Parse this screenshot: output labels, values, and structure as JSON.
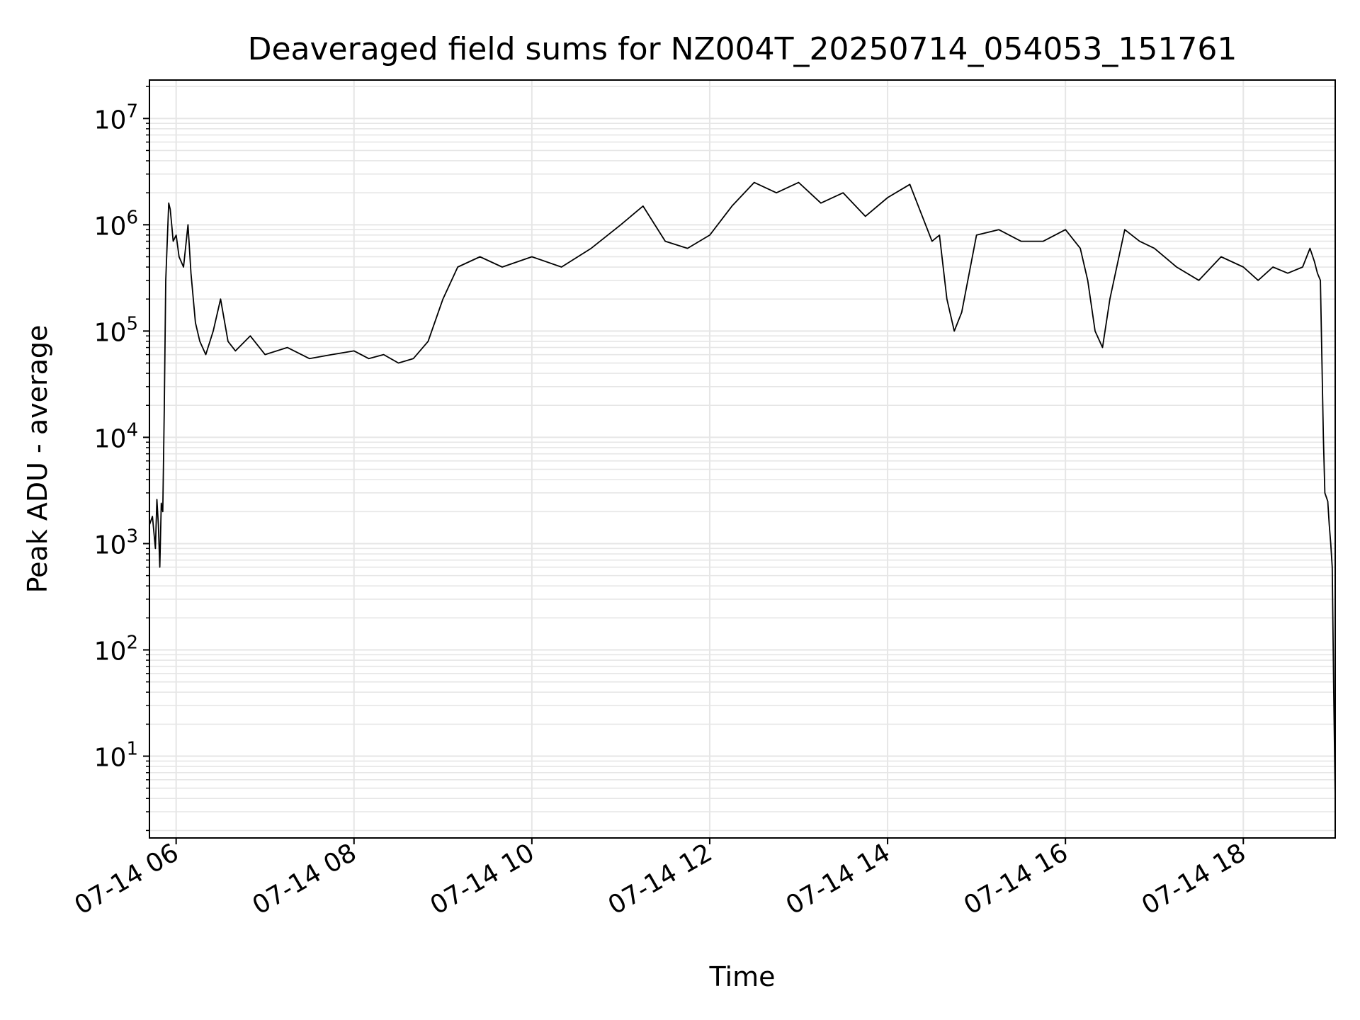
{
  "chart_data": {
    "type": "line",
    "title": "Deaveraged field sums for NZ004T_20250714_054053_151761",
    "xlabel": "Time",
    "ylabel": "Peak ADU - average",
    "yscale": "log",
    "grid": true,
    "x_range": [
      "2025-07-14T05:42",
      "2025-07-14T19:02"
    ],
    "ylim": [
      1.7,
      23000000
    ],
    "x_ticks": [
      {
        "time": "2025-07-14T06:00",
        "label": "07-14 06"
      },
      {
        "time": "2025-07-14T08:00",
        "label": "07-14 08"
      },
      {
        "time": "2025-07-14T10:00",
        "label": "07-14 10"
      },
      {
        "time": "2025-07-14T12:00",
        "label": "07-14 12"
      },
      {
        "time": "2025-07-14T14:00",
        "label": "07-14 14"
      },
      {
        "time": "2025-07-14T16:00",
        "label": "07-14 16"
      },
      {
        "time": "2025-07-14T18:00",
        "label": "07-14 18"
      }
    ],
    "y_ticks": [
      {
        "value": 10,
        "base": "10",
        "exp": "1"
      },
      {
        "value": 100,
        "base": "10",
        "exp": "2"
      },
      {
        "value": 1000,
        "base": "10",
        "exp": "3"
      },
      {
        "value": 10000,
        "base": "10",
        "exp": "4"
      },
      {
        "value": 100000,
        "base": "10",
        "exp": "5"
      },
      {
        "value": 1000000,
        "base": "10",
        "exp": "6"
      },
      {
        "value": 10000000,
        "base": "10",
        "exp": "7"
      }
    ],
    "line_color": "#000000",
    "grid_color": "#e6e6e6",
    "series": [
      {
        "x": [
          "2025-07-14T05:42",
          "2025-07-14T05:44",
          "2025-07-14T05:46",
          "2025-07-14T05:47",
          "2025-07-14T05:48",
          "2025-07-14T05:49",
          "2025-07-14T05:50",
          "2025-07-14T05:51",
          "2025-07-14T05:52",
          "2025-07-14T05:53",
          "2025-07-14T05:55",
          "2025-07-14T05:56",
          "2025-07-14T05:57",
          "2025-07-14T05:58",
          "2025-07-14T06:00",
          "2025-07-14T06:02",
          "2025-07-14T06:05",
          "2025-07-14T06:08",
          "2025-07-14T06:10",
          "2025-07-14T06:13",
          "2025-07-14T06:16",
          "2025-07-14T06:20",
          "2025-07-14T06:25",
          "2025-07-14T06:30",
          "2025-07-14T06:35",
          "2025-07-14T06:40",
          "2025-07-14T06:50",
          "2025-07-14T07:00",
          "2025-07-14T07:15",
          "2025-07-14T07:30",
          "2025-07-14T07:45",
          "2025-07-14T08:00",
          "2025-07-14T08:10",
          "2025-07-14T08:20",
          "2025-07-14T08:30",
          "2025-07-14T08:40",
          "2025-07-14T08:50",
          "2025-07-14T09:00",
          "2025-07-14T09:10",
          "2025-07-14T09:25",
          "2025-07-14T09:40",
          "2025-07-14T10:00",
          "2025-07-14T10:20",
          "2025-07-14T10:40",
          "2025-07-14T11:00",
          "2025-07-14T11:15",
          "2025-07-14T11:30",
          "2025-07-14T11:45",
          "2025-07-14T12:00",
          "2025-07-14T12:15",
          "2025-07-14T12:30",
          "2025-07-14T12:45",
          "2025-07-14T13:00",
          "2025-07-14T13:15",
          "2025-07-14T13:30",
          "2025-07-14T13:45",
          "2025-07-14T14:00",
          "2025-07-14T14:15",
          "2025-07-14T14:30",
          "2025-07-14T14:35",
          "2025-07-14T14:40",
          "2025-07-14T14:45",
          "2025-07-14T14:50",
          "2025-07-14T15:00",
          "2025-07-14T15:15",
          "2025-07-14T15:30",
          "2025-07-14T15:45",
          "2025-07-14T16:00",
          "2025-07-14T16:10",
          "2025-07-14T16:15",
          "2025-07-14T16:20",
          "2025-07-14T16:25",
          "2025-07-14T16:30",
          "2025-07-14T16:40",
          "2025-07-14T16:50",
          "2025-07-14T17:00",
          "2025-07-14T17:15",
          "2025-07-14T17:30",
          "2025-07-14T17:45",
          "2025-07-14T18:00",
          "2025-07-14T18:10",
          "2025-07-14T18:20",
          "2025-07-14T18:30",
          "2025-07-14T18:40",
          "2025-07-14T18:45",
          "2025-07-14T18:48",
          "2025-07-14T18:50",
          "2025-07-14T18:52",
          "2025-07-14T18:54",
          "2025-07-14T18:55",
          "2025-07-14T18:57",
          "2025-07-14T18:58",
          "2025-07-14T18:59",
          "2025-07-14T19:00",
          "2025-07-14T19:01",
          "2025-07-14T19:02"
        ],
        "y": [
          1500,
          1800,
          900,
          2600,
          1500,
          600,
          2400,
          2000,
          18000,
          300000,
          1600000,
          1400000,
          1000000,
          700000,
          800000,
          500000,
          400000,
          1000000,
          350000,
          120000,
          80000,
          60000,
          100000,
          200000,
          80000,
          65000,
          90000,
          60000,
          70000,
          55000,
          60000,
          65000,
          55000,
          60000,
          50000,
          55000,
          80000,
          200000,
          400000,
          500000,
          400000,
          500000,
          400000,
          600000,
          1000000,
          1500000,
          700000,
          600000,
          800000,
          1500000,
          2500000,
          2000000,
          2500000,
          1600000,
          2000000,
          1200000,
          1800000,
          2400000,
          700000,
          800000,
          200000,
          100000,
          150000,
          800000,
          900000,
          700000,
          700000,
          900000,
          600000,
          300000,
          100000,
          70000,
          200000,
          900000,
          700000,
          600000,
          400000,
          300000,
          500000,
          400000,
          300000,
          400000,
          350000,
          400000,
          600000,
          450000,
          350000,
          300000,
          10000,
          3000,
          2500,
          1500,
          1000,
          600,
          40,
          4
        ]
      }
    ]
  }
}
